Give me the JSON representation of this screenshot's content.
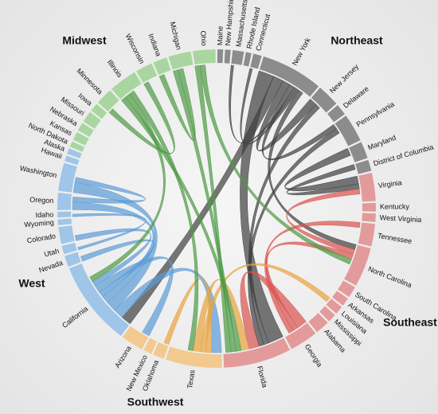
{
  "chart_data": {
    "type": "chord",
    "regions": [
      {
        "name": "Northeast",
        "color": "#8c8c8c",
        "chord_color": "#3f3f3f"
      },
      {
        "name": "Southeast",
        "color": "#e39a9a",
        "chord_color": "#d9534f"
      },
      {
        "name": "Southwest",
        "color": "#f2c98e",
        "chord_color": "#e8a33d"
      },
      {
        "name": "West",
        "color": "#9fc5e8",
        "chord_color": "#5b9bd5"
      },
      {
        "name": "Midwest",
        "color": "#a9d6a0",
        "chord_color": "#4e9a45"
      }
    ],
    "nodes": [
      {
        "name": "Maine",
        "region": "Northeast",
        "value": 2
      },
      {
        "name": "New Hampshire",
        "region": "Northeast",
        "value": 2
      },
      {
        "name": "Massachusetts",
        "region": "Northeast",
        "value": 4
      },
      {
        "name": "Rhode Island",
        "region": "Northeast",
        "value": 2
      },
      {
        "name": "Connecticut",
        "region": "Northeast",
        "value": 3
      },
      {
        "name": "New York",
        "region": "Northeast",
        "value": 22
      },
      {
        "name": "New Jersey",
        "region": "Northeast",
        "value": 8
      },
      {
        "name": "Delaware",
        "region": "Northeast",
        "value": 4
      },
      {
        "name": "Pennsylvania",
        "region": "Northeast",
        "value": 10
      },
      {
        "name": "Maryland",
        "region": "Northeast",
        "value": 6
      },
      {
        "name": "District of Columbia",
        "region": "Northeast",
        "value": 4
      },
      {
        "name": "Virginia",
        "region": "Southeast",
        "value": 10
      },
      {
        "name": "Kentucky",
        "region": "Southeast",
        "value": 3
      },
      {
        "name": "West Virginia",
        "region": "Southeast",
        "value": 3
      },
      {
        "name": "Tennessee",
        "region": "Southeast",
        "value": 8
      },
      {
        "name": "North Carolina",
        "region": "Southeast",
        "value": 14
      },
      {
        "name": "South Carolina",
        "region": "Southeast",
        "value": 4
      },
      {
        "name": "Arkansas",
        "region": "Southeast",
        "value": 3
      },
      {
        "name": "Louisiana",
        "region": "Southeast",
        "value": 3
      },
      {
        "name": "Mississippi",
        "region": "Southeast",
        "value": 3
      },
      {
        "name": "Alabama",
        "region": "Southeast",
        "value": 5
      },
      {
        "name": "Georgia",
        "region": "Southeast",
        "value": 10
      },
      {
        "name": "Florida",
        "region": "Southeast",
        "value": 24
      },
      {
        "name": "Texas",
        "region": "Southwest",
        "value": 20
      },
      {
        "name": "Oklahoma",
        "region": "Southwest",
        "value": 4
      },
      {
        "name": "New Mexico",
        "region": "Southwest",
        "value": 3
      },
      {
        "name": "Arizona",
        "region": "Southwest",
        "value": 8
      },
      {
        "name": "California",
        "region": "West",
        "value": 30
      },
      {
        "name": "Nevada",
        "region": "West",
        "value": 4
      },
      {
        "name": "Utah",
        "region": "West",
        "value": 3
      },
      {
        "name": "Colorado",
        "region": "West",
        "value": 6
      },
      {
        "name": "Wyoming",
        "region": "West",
        "value": 2
      },
      {
        "name": "Idaho",
        "region": "West",
        "value": 2
      },
      {
        "name": "Oregon",
        "region": "West",
        "value": 6
      },
      {
        "name": "Washington",
        "region": "West",
        "value": 10
      },
      {
        "name": "Hawaii",
        "region": "West",
        "value": 2
      },
      {
        "name": "Alaska",
        "region": "West",
        "value": 2
      },
      {
        "name": "North Dakota",
        "region": "Midwest",
        "value": 2
      },
      {
        "name": "Kansas",
        "region": "Midwest",
        "value": 3
      },
      {
        "name": "Nebraska",
        "region": "Midwest",
        "value": 3
      },
      {
        "name": "Missouri",
        "region": "Midwest",
        "value": 4
      },
      {
        "name": "Iowa",
        "region": "Midwest",
        "value": 3
      },
      {
        "name": "Minnesota",
        "region": "Midwest",
        "value": 6
      },
      {
        "name": "Illinois",
        "region": "Midwest",
        "value": 10
      },
      {
        "name": "Wisconsin",
        "region": "Midwest",
        "value": 6
      },
      {
        "name": "Indiana",
        "region": "Midwest",
        "value": 5
      },
      {
        "name": "Michigan",
        "region": "Midwest",
        "value": 8
      },
      {
        "name": "Ohio",
        "region": "Midwest",
        "value": 8
      }
    ],
    "links": [
      {
        "source": "New York",
        "target": "Florida",
        "value": 6
      },
      {
        "source": "New York",
        "target": "California",
        "value": 4
      },
      {
        "source": "New York",
        "target": "New Jersey",
        "value": 3
      },
      {
        "source": "New York",
        "target": "Pennsylvania",
        "value": 2
      },
      {
        "source": "New York",
        "target": "Massachusetts",
        "value": 1
      },
      {
        "source": "New York",
        "target": "Connecticut",
        "value": 1
      },
      {
        "source": "New York",
        "target": "North Carolina",
        "value": 2
      },
      {
        "source": "New Jersey",
        "target": "Florida",
        "value": 2
      },
      {
        "source": "Pennsylvania",
        "target": "Florida",
        "value": 2
      },
      {
        "source": "Maryland",
        "target": "Virginia",
        "value": 3
      },
      {
        "source": "District of Columbia",
        "target": "Virginia",
        "value": 2
      },
      {
        "source": "Virginia",
        "target": "North Carolina",
        "value": 2
      },
      {
        "source": "Florida",
        "target": "Georgia",
        "value": 4
      },
      {
        "source": "Georgia",
        "target": "North Carolina",
        "value": 2
      },
      {
        "source": "Tennessee",
        "target": "Georgia",
        "value": 2
      },
      {
        "source": "California",
        "target": "Texas",
        "value": 4
      },
      {
        "source": "California",
        "target": "Washington",
        "value": 4
      },
      {
        "source": "California",
        "target": "Oregon",
        "value": 3
      },
      {
        "source": "California",
        "target": "Nevada",
        "value": 2
      },
      {
        "source": "California",
        "target": "Arizona",
        "value": 3
      },
      {
        "source": "Colorado",
        "target": "California",
        "value": 2
      },
      {
        "source": "Texas",
        "target": "Oklahoma",
        "value": 2
      },
      {
        "source": "Texas",
        "target": "Louisiana",
        "value": 2
      },
      {
        "source": "Texas",
        "target": "Florida",
        "value": 3
      },
      {
        "source": "Illinois",
        "target": "Florida",
        "value": 2
      },
      {
        "source": "Michigan",
        "target": "Florida",
        "value": 2
      },
      {
        "source": "Ohio",
        "target": "Florida",
        "value": 2
      },
      {
        "source": "Ohio",
        "target": "North Carolina",
        "value": 2
      },
      {
        "source": "Illinois",
        "target": "California",
        "value": 2
      },
      {
        "source": "Minnesota",
        "target": "Wisconsin",
        "value": 2
      },
      {
        "source": "Michigan",
        "target": "Indiana",
        "value": 2
      },
      {
        "source": "Illinois",
        "target": "Texas",
        "value": 2
      },
      {
        "source": "Washington",
        "target": "Oregon",
        "value": 2
      },
      {
        "source": "Utah",
        "target": "Idaho",
        "value": 1
      }
    ]
  }
}
